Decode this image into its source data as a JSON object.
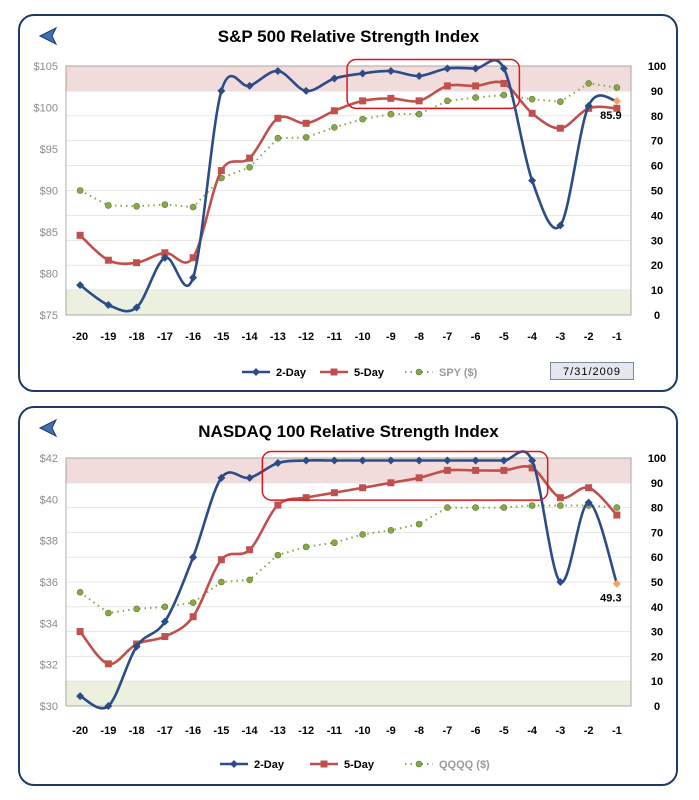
{
  "colors": {
    "two_day": "#2b4c86",
    "five_day": "#c0504d",
    "etf": "#8aa64a",
    "overbought_band": "#f2dcdb",
    "oversold_band": "#ebf1de",
    "highlight_box": "#e0141e",
    "last_marker": "#f4a460",
    "frame": "#1f3a66"
  },
  "icons": [
    "back-arrow-icon",
    "back-arrow-icon"
  ],
  "chart_data": [
    {
      "type": "line",
      "title": "S&P 500 Relative Strength Index",
      "date_label": "7/31/2009",
      "categories": [
        "-20",
        "-19",
        "-18",
        "-17",
        "-16",
        "-15",
        "-14",
        "-13",
        "-12",
        "-11",
        "-10",
        "-9",
        "-8",
        "-7",
        "-6",
        "-5",
        "-4",
        "-3",
        "-2",
        "-1"
      ],
      "left_axis": {
        "ylim": [
          75,
          105
        ],
        "ticks": [
          "$75",
          "$80",
          "$85",
          "$90",
          "$95",
          "$100",
          "$105"
        ]
      },
      "right_axis": {
        "ylim": [
          0,
          100
        ],
        "ticks": [
          "0",
          "10",
          "20",
          "30",
          "40",
          "50",
          "60",
          "70",
          "80",
          "90",
          "100"
        ]
      },
      "bands": {
        "overbought": [
          90,
          100
        ],
        "oversold": [
          0,
          10
        ]
      },
      "highlight": {
        "from": "-10",
        "to": "-5"
      },
      "last_value_label": "85.9",
      "series": [
        {
          "name": "2-Day",
          "axis": "right",
          "style": "solid",
          "marker": "diamond",
          "values": [
            12,
            4,
            3,
            23,
            15,
            90,
            92,
            98,
            90,
            95,
            97,
            98,
            96,
            99,
            99,
            99,
            54,
            36,
            84,
            85.9
          ]
        },
        {
          "name": "5-Day",
          "axis": "right",
          "style": "solid",
          "marker": "square",
          "values": [
            32,
            22,
            21,
            25,
            23,
            58,
            63,
            79,
            77,
            82,
            86,
            87,
            86,
            92,
            92,
            93,
            81,
            75,
            83,
            83
          ]
        },
        {
          "name": "SPY ($)",
          "axis": "left",
          "style": "dotted",
          "marker": "circle",
          "values": [
            90,
            88.2,
            88.1,
            88.3,
            88,
            91.5,
            92.8,
            96.3,
            96.4,
            97.6,
            98.6,
            99.2,
            99.2,
            100.8,
            101.2,
            101.5,
            101,
            100.7,
            102.9,
            102.4
          ]
        }
      ]
    },
    {
      "type": "line",
      "title": "NASDAQ 100 Relative Strength Index",
      "categories": [
        "-20",
        "-19",
        "-18",
        "-17",
        "-16",
        "-15",
        "-14",
        "-13",
        "-12",
        "-11",
        "-10",
        "-9",
        "-8",
        "-7",
        "-6",
        "-5",
        "-4",
        "-3",
        "-2",
        "-1"
      ],
      "left_axis": {
        "ylim": [
          30,
          42
        ],
        "ticks": [
          "$30",
          "$32",
          "$34",
          "$36",
          "$38",
          "$40",
          "$42"
        ]
      },
      "right_axis": {
        "ylim": [
          0,
          100
        ],
        "ticks": [
          "0",
          "10",
          "20",
          "30",
          "40",
          "50",
          "60",
          "70",
          "80",
          "90",
          "100"
        ]
      },
      "bands": {
        "overbought": [
          90,
          100
        ],
        "oversold": [
          0,
          10
        ]
      },
      "highlight": {
        "from": "-13",
        "to": "-4"
      },
      "last_value_label": "49.3",
      "series": [
        {
          "name": "2-Day",
          "axis": "right",
          "style": "solid",
          "marker": "diamond",
          "values": [
            4,
            0,
            24,
            34,
            60,
            92,
            92,
            98,
            99,
            99,
            99,
            99,
            99,
            99,
            99,
            99,
            99,
            50,
            82,
            49.3
          ]
        },
        {
          "name": "5-Day",
          "axis": "right",
          "style": "solid",
          "marker": "square",
          "values": [
            30,
            17,
            25,
            28,
            36,
            59,
            63,
            81,
            84,
            86,
            88,
            90,
            92,
            95,
            95,
            95,
            96,
            84,
            88,
            77
          ]
        },
        {
          "name": "QQQQ ($)",
          "axis": "left",
          "style": "dotted",
          "marker": "circle",
          "values": [
            35.5,
            34.5,
            34.7,
            34.8,
            35,
            36,
            36.1,
            37.3,
            37.7,
            37.9,
            38.3,
            38.5,
            38.8,
            39.6,
            39.6,
            39.6,
            39.7,
            39.7,
            39.7,
            39.6
          ]
        }
      ]
    }
  ]
}
